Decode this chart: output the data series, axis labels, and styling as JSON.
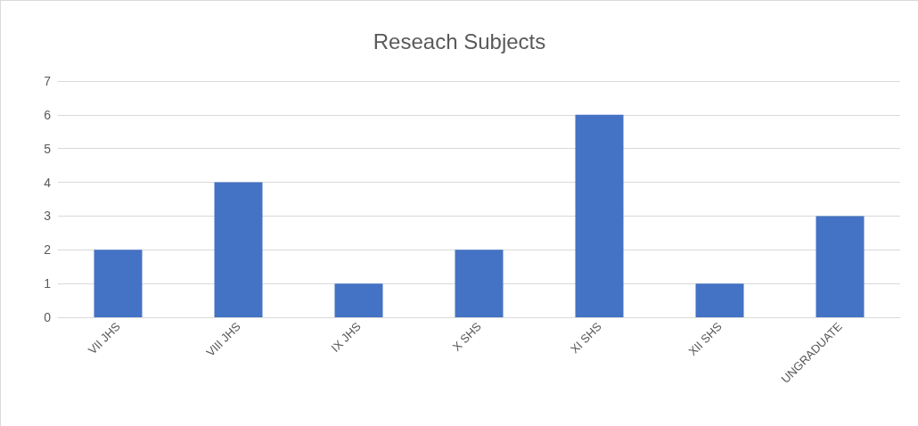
{
  "chart_data": {
    "type": "bar",
    "title": "Reseach Subjects",
    "categories": [
      "VII JHS",
      "VIII JHS",
      "IX JHS",
      "X SHS",
      "XI SHS",
      "XII SHS",
      "UNGRADUATE"
    ],
    "values": [
      2,
      4,
      1,
      2,
      6,
      1,
      3
    ],
    "color": "#4472c4",
    "ylim": [
      0,
      7
    ],
    "yticks": [
      0,
      1,
      2,
      3,
      4,
      5,
      6,
      7
    ],
    "grid": "y"
  }
}
